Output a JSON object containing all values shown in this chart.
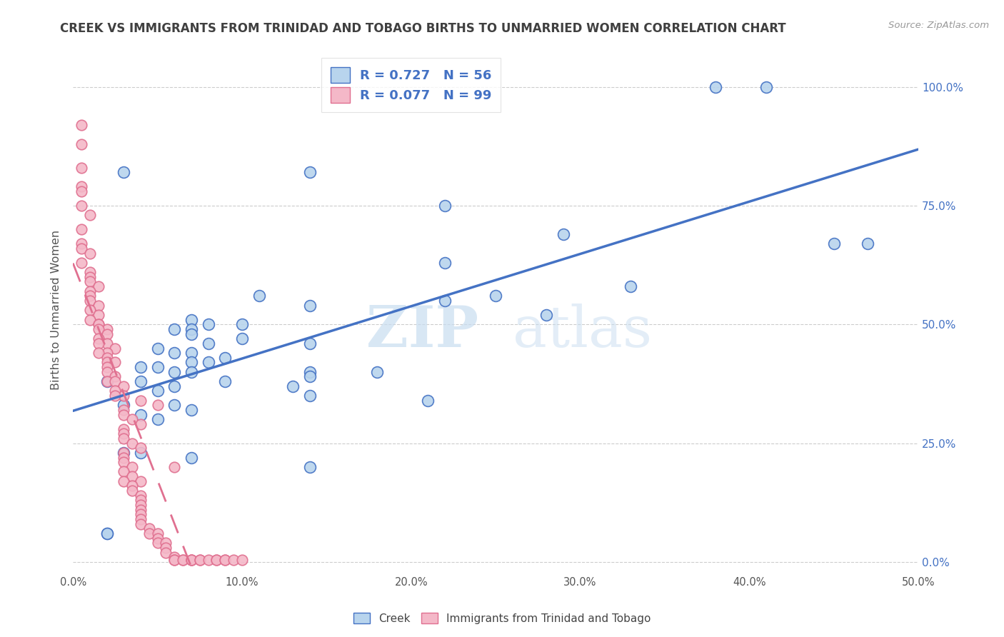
{
  "title": "CREEK VS IMMIGRANTS FROM TRINIDAD AND TOBAGO BIRTHS TO UNMARRIED WOMEN CORRELATION CHART",
  "source": "Source: ZipAtlas.com",
  "ylabel": "Births to Unmarried Women",
  "xlim": [
    0.0,
    0.5
  ],
  "ylim": [
    -0.02,
    1.08
  ],
  "xticks": [
    0.0,
    0.1,
    0.2,
    0.3,
    0.4,
    0.5
  ],
  "yticks_right": [
    0.0,
    0.25,
    0.5,
    0.75,
    1.0
  ],
  "ytick_labels_right": [
    "0.0%",
    "25.0%",
    "50.0%",
    "75.0%",
    "100.0%"
  ],
  "xtick_labels": [
    "0.0%",
    "10.0%",
    "20.0%",
    "30.0%",
    "40.0%",
    "50.0%"
  ],
  "creek_R": 0.727,
  "creek_N": 56,
  "immigrants_R": 0.077,
  "immigrants_N": 99,
  "creek_color": "#b8d4ed",
  "creek_line_color": "#4472c4",
  "immigrants_color": "#f4b8c8",
  "immigrants_line_color": "#e07090",
  "title_color": "#404040",
  "legend_text_color": "#4472c4",
  "watermark_zip": "ZIP",
  "watermark_atlas": "atlas",
  "background_color": "#ffffff",
  "creek_scatter": [
    [
      0.38,
      1.0
    ],
    [
      0.41,
      1.0
    ],
    [
      0.03,
      0.82
    ],
    [
      0.14,
      0.82
    ],
    [
      0.22,
      0.75
    ],
    [
      0.29,
      0.69
    ],
    [
      0.45,
      0.67
    ],
    [
      0.47,
      0.67
    ],
    [
      0.22,
      0.63
    ],
    [
      0.33,
      0.58
    ],
    [
      0.11,
      0.56
    ],
    [
      0.25,
      0.56
    ],
    [
      0.22,
      0.55
    ],
    [
      0.14,
      0.54
    ],
    [
      0.28,
      0.52
    ],
    [
      0.07,
      0.51
    ],
    [
      0.08,
      0.5
    ],
    [
      0.1,
      0.5
    ],
    [
      0.06,
      0.49
    ],
    [
      0.07,
      0.49
    ],
    [
      0.07,
      0.48
    ],
    [
      0.1,
      0.47
    ],
    [
      0.14,
      0.46
    ],
    [
      0.08,
      0.46
    ],
    [
      0.05,
      0.45
    ],
    [
      0.06,
      0.44
    ],
    [
      0.07,
      0.44
    ],
    [
      0.09,
      0.43
    ],
    [
      0.07,
      0.42
    ],
    [
      0.08,
      0.42
    ],
    [
      0.04,
      0.41
    ],
    [
      0.05,
      0.41
    ],
    [
      0.06,
      0.4
    ],
    [
      0.07,
      0.4
    ],
    [
      0.14,
      0.4
    ],
    [
      0.18,
      0.4
    ],
    [
      0.14,
      0.39
    ],
    [
      0.02,
      0.38
    ],
    [
      0.04,
      0.38
    ],
    [
      0.09,
      0.38
    ],
    [
      0.06,
      0.37
    ],
    [
      0.13,
      0.37
    ],
    [
      0.05,
      0.36
    ],
    [
      0.14,
      0.35
    ],
    [
      0.21,
      0.34
    ],
    [
      0.03,
      0.33
    ],
    [
      0.06,
      0.33
    ],
    [
      0.07,
      0.32
    ],
    [
      0.04,
      0.31
    ],
    [
      0.05,
      0.3
    ],
    [
      0.03,
      0.23
    ],
    [
      0.04,
      0.23
    ],
    [
      0.07,
      0.22
    ],
    [
      0.14,
      0.2
    ],
    [
      0.02,
      0.06
    ],
    [
      0.02,
      0.06
    ]
  ],
  "immigrants_scatter": [
    [
      0.005,
      0.92
    ],
    [
      0.005,
      0.88
    ],
    [
      0.005,
      0.83
    ],
    [
      0.005,
      0.79
    ],
    [
      0.005,
      0.78
    ],
    [
      0.005,
      0.75
    ],
    [
      0.01,
      0.73
    ],
    [
      0.005,
      0.7
    ],
    [
      0.005,
      0.67
    ],
    [
      0.005,
      0.66
    ],
    [
      0.01,
      0.65
    ],
    [
      0.005,
      0.63
    ],
    [
      0.01,
      0.61
    ],
    [
      0.01,
      0.6
    ],
    [
      0.01,
      0.59
    ],
    [
      0.015,
      0.58
    ],
    [
      0.01,
      0.57
    ],
    [
      0.01,
      0.56
    ],
    [
      0.01,
      0.55
    ],
    [
      0.015,
      0.54
    ],
    [
      0.01,
      0.53
    ],
    [
      0.015,
      0.52
    ],
    [
      0.01,
      0.51
    ],
    [
      0.015,
      0.5
    ],
    [
      0.015,
      0.5
    ],
    [
      0.02,
      0.49
    ],
    [
      0.015,
      0.49
    ],
    [
      0.02,
      0.48
    ],
    [
      0.015,
      0.47
    ],
    [
      0.02,
      0.46
    ],
    [
      0.015,
      0.46
    ],
    [
      0.025,
      0.45
    ],
    [
      0.02,
      0.44
    ],
    [
      0.015,
      0.44
    ],
    [
      0.02,
      0.43
    ],
    [
      0.02,
      0.42
    ],
    [
      0.025,
      0.42
    ],
    [
      0.02,
      0.41
    ],
    [
      0.02,
      0.4
    ],
    [
      0.025,
      0.39
    ],
    [
      0.02,
      0.38
    ],
    [
      0.025,
      0.38
    ],
    [
      0.03,
      0.37
    ],
    [
      0.025,
      0.36
    ],
    [
      0.03,
      0.35
    ],
    [
      0.025,
      0.35
    ],
    [
      0.04,
      0.34
    ],
    [
      0.05,
      0.33
    ],
    [
      0.03,
      0.32
    ],
    [
      0.03,
      0.31
    ],
    [
      0.035,
      0.3
    ],
    [
      0.04,
      0.29
    ],
    [
      0.03,
      0.28
    ],
    [
      0.03,
      0.27
    ],
    [
      0.03,
      0.26
    ],
    [
      0.035,
      0.25
    ],
    [
      0.04,
      0.24
    ],
    [
      0.03,
      0.23
    ],
    [
      0.03,
      0.22
    ],
    [
      0.03,
      0.21
    ],
    [
      0.035,
      0.2
    ],
    [
      0.06,
      0.2
    ],
    [
      0.03,
      0.19
    ],
    [
      0.035,
      0.18
    ],
    [
      0.03,
      0.17
    ],
    [
      0.04,
      0.17
    ],
    [
      0.035,
      0.16
    ],
    [
      0.035,
      0.15
    ],
    [
      0.04,
      0.14
    ],
    [
      0.04,
      0.13
    ],
    [
      0.04,
      0.12
    ],
    [
      0.04,
      0.11
    ],
    [
      0.04,
      0.1
    ],
    [
      0.04,
      0.09
    ],
    [
      0.04,
      0.08
    ],
    [
      0.045,
      0.07
    ],
    [
      0.045,
      0.06
    ],
    [
      0.05,
      0.06
    ],
    [
      0.05,
      0.05
    ],
    [
      0.05,
      0.04
    ],
    [
      0.055,
      0.04
    ],
    [
      0.055,
      0.03
    ],
    [
      0.055,
      0.02
    ],
    [
      0.06,
      0.01
    ],
    [
      0.06,
      0.005
    ],
    [
      0.065,
      0.005
    ],
    [
      0.06,
      0.005
    ],
    [
      0.065,
      0.005
    ],
    [
      0.07,
      0.005
    ],
    [
      0.07,
      0.005
    ],
    [
      0.07,
      0.005
    ],
    [
      0.075,
      0.005
    ],
    [
      0.075,
      0.005
    ],
    [
      0.08,
      0.005
    ],
    [
      0.085,
      0.005
    ],
    [
      0.085,
      0.005
    ],
    [
      0.09,
      0.005
    ],
    [
      0.09,
      0.005
    ],
    [
      0.095,
      0.005
    ],
    [
      0.1,
      0.005
    ]
  ]
}
